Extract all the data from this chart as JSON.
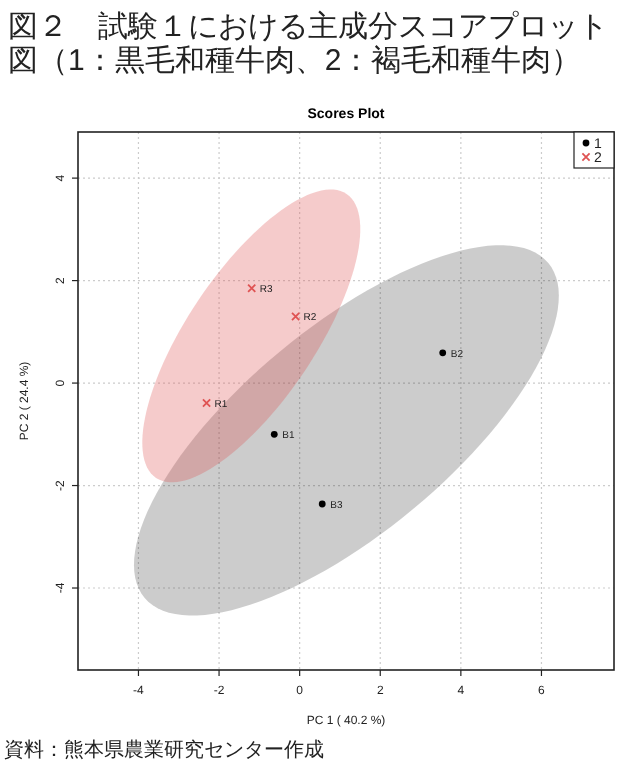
{
  "chart_data": {
    "type": "scatter",
    "title": "図２　試験１における主成分スコアプロット図（1：黒毛和種牛肉、2：褐毛和種牛肉）",
    "subtitle": "Scores Plot",
    "xlabel": "PC 1 ( 40.2 %)",
    "ylabel": "PC 2 ( 24.4 %)",
    "series": [
      {
        "name": "1",
        "color": "#000000",
        "marker": "circle",
        "x": [
          -0.63,
          3.55,
          0.56
        ],
        "values": [
          -1.0,
          0.59,
          -2.36
        ]
      },
      {
        "name": "2",
        "color": "#df5353",
        "marker": "cross",
        "x": [
          -2.31,
          -0.1,
          -1.19
        ],
        "values": [
          -0.39,
          1.3,
          1.85
        ]
      }
    ],
    "annotations": [
      {
        "text": "B1",
        "x": -0.63,
        "y": -1.0
      },
      {
        "text": "B2",
        "x": 3.55,
        "y": 0.59
      },
      {
        "text": "B3",
        "x": 0.56,
        "y": -2.36
      },
      {
        "text": "R1",
        "x": -2.31,
        "y": -0.39
      },
      {
        "text": "R2",
        "x": -0.1,
        "y": 1.3
      },
      {
        "text": "R3",
        "x": -1.19,
        "y": 1.85
      },
      "資料：熊本県農業研究センター作成"
    ],
    "xlim": [
      -5.5,
      7.8
    ],
    "ylim": [
      -5.6,
      4.9
    ],
    "xticks": [
      -4,
      -2,
      0,
      2,
      4,
      6
    ],
    "yticks": [
      -4,
      -2,
      0,
      2,
      4
    ],
    "grid": true,
    "legend": "top right"
  }
}
